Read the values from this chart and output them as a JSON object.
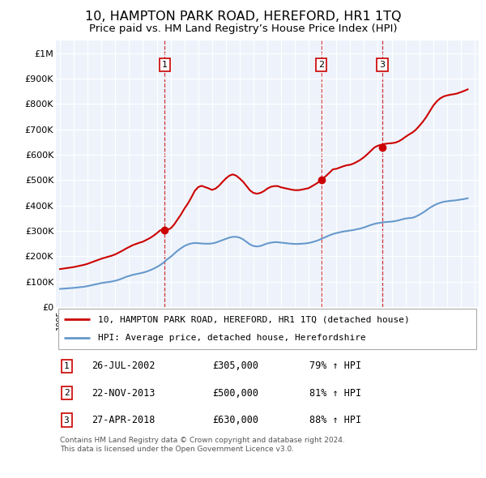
{
  "title": "10, HAMPTON PARK ROAD, HEREFORD, HR1 1TQ",
  "subtitle": "Price paid vs. HM Land Registry’s House Price Index (HPI)",
  "title_fontsize": 11.5,
  "subtitle_fontsize": 9.5,
  "ylabel_ticks": [
    "£0",
    "£100K",
    "£200K",
    "£300K",
    "£400K",
    "£500K",
    "£600K",
    "£700K",
    "£800K",
    "£900K",
    "£1M"
  ],
  "ytick_values": [
    0,
    100000,
    200000,
    300000,
    400000,
    500000,
    600000,
    700000,
    800000,
    900000,
    1000000
  ],
  "ylim": [
    0,
    1050000
  ],
  "xlim_start": 1994.7,
  "xlim_end": 2025.3,
  "background_color": "#ffffff",
  "chart_bg_color": "#eef3fb",
  "grid_color": "#ffffff",
  "sale_color": "#cc0000",
  "hpi_color": "#6699cc",
  "sale_markers": [
    {
      "year": 2002.57,
      "price": 305000,
      "label": "1"
    },
    {
      "year": 2013.9,
      "price": 500000,
      "label": "2"
    },
    {
      "year": 2018.32,
      "price": 630000,
      "label": "3"
    }
  ],
  "legend_entries": [
    "10, HAMPTON PARK ROAD, HEREFORD, HR1 1TQ (detached house)",
    "HPI: Average price, detached house, Herefordshire"
  ],
  "table_rows": [
    {
      "num": "1",
      "date": "26-JUL-2002",
      "price": "£305,000",
      "hpi": "79% ↑ HPI"
    },
    {
      "num": "2",
      "date": "22-NOV-2013",
      "price": "£500,000",
      "hpi": "81% ↑ HPI"
    },
    {
      "num": "3",
      "date": "27-APR-2018",
      "price": "£630,000",
      "hpi": "88% ↑ HPI"
    }
  ],
  "footer": "Contains HM Land Registry data © Crown copyright and database right 2024.\nThis data is licensed under the Open Government Licence v3.0.",
  "hpi_data": {
    "years": [
      1995.0,
      1995.25,
      1995.5,
      1995.75,
      1996.0,
      1996.25,
      1996.5,
      1996.75,
      1997.0,
      1997.25,
      1997.5,
      1997.75,
      1998.0,
      1998.25,
      1998.5,
      1998.75,
      1999.0,
      1999.25,
      1999.5,
      1999.75,
      2000.0,
      2000.25,
      2000.5,
      2000.75,
      2001.0,
      2001.25,
      2001.5,
      2001.75,
      2002.0,
      2002.25,
      2002.5,
      2002.75,
      2003.0,
      2003.25,
      2003.5,
      2003.75,
      2004.0,
      2004.25,
      2004.5,
      2004.75,
      2005.0,
      2005.25,
      2005.5,
      2005.75,
      2006.0,
      2006.25,
      2006.5,
      2006.75,
      2007.0,
      2007.25,
      2007.5,
      2007.75,
      2008.0,
      2008.25,
      2008.5,
      2008.75,
      2009.0,
      2009.25,
      2009.5,
      2009.75,
      2010.0,
      2010.25,
      2010.5,
      2010.75,
      2011.0,
      2011.25,
      2011.5,
      2011.75,
      2012.0,
      2012.25,
      2012.5,
      2012.75,
      2013.0,
      2013.25,
      2013.5,
      2013.75,
      2014.0,
      2014.25,
      2014.5,
      2014.75,
      2015.0,
      2015.25,
      2015.5,
      2015.75,
      2016.0,
      2016.25,
      2016.5,
      2016.75,
      2017.0,
      2017.25,
      2017.5,
      2017.75,
      2018.0,
      2018.25,
      2018.5,
      2018.75,
      2019.0,
      2019.25,
      2019.5,
      2019.75,
      2020.0,
      2020.25,
      2020.5,
      2020.75,
      2021.0,
      2021.25,
      2021.5,
      2021.75,
      2022.0,
      2022.25,
      2022.5,
      2022.75,
      2023.0,
      2023.25,
      2023.5,
      2023.75,
      2024.0,
      2024.25,
      2024.5
    ],
    "values": [
      72000,
      73000,
      74000,
      75000,
      76000,
      77500,
      79000,
      80500,
      83000,
      86000,
      89000,
      92000,
      95000,
      97000,
      99000,
      101000,
      104000,
      108000,
      113000,
      119000,
      123000,
      127000,
      130000,
      133000,
      136000,
      140000,
      145000,
      151000,
      158000,
      166000,
      176000,
      188000,
      198000,
      210000,
      222000,
      232000,
      241000,
      247000,
      251000,
      253000,
      252000,
      251000,
      250000,
      250000,
      251000,
      254000,
      259000,
      264000,
      269000,
      274000,
      277000,
      277000,
      274000,
      267000,
      257000,
      247000,
      241000,
      239000,
      241000,
      246000,
      251000,
      254000,
      256000,
      256000,
      254000,
      253000,
      251000,
      250000,
      249000,
      249000,
      250000,
      251000,
      253000,
      256000,
      260000,
      265000,
      271000,
      277000,
      283000,
      288000,
      292000,
      295000,
      298000,
      300000,
      302000,
      304000,
      307000,
      310000,
      314000,
      319000,
      324000,
      328000,
      331000,
      333000,
      335000,
      336000,
      337000,
      339000,
      342000,
      346000,
      349000,
      351000,
      352000,
      357000,
      364000,
      372000,
      381000,
      391000,
      399000,
      406000,
      411000,
      415000,
      417000,
      419000,
      420000,
      422000,
      424000,
      426000,
      429000
    ]
  },
  "sale_line_data": {
    "years": [
      1995.0,
      1995.25,
      1995.5,
      1995.75,
      1996.0,
      1996.25,
      1996.5,
      1996.75,
      1997.0,
      1997.25,
      1997.5,
      1997.75,
      1998.0,
      1998.25,
      1998.5,
      1998.75,
      1999.0,
      1999.25,
      1999.5,
      1999.75,
      2000.0,
      2000.25,
      2000.5,
      2000.75,
      2001.0,
      2001.25,
      2001.5,
      2001.75,
      2002.0,
      2002.25,
      2002.5,
      2002.75,
      2003.0,
      2003.25,
      2003.5,
      2003.75,
      2004.0,
      2004.25,
      2004.5,
      2004.75,
      2005.0,
      2005.25,
      2005.5,
      2005.75,
      2006.0,
      2006.25,
      2006.5,
      2006.75,
      2007.0,
      2007.25,
      2007.5,
      2007.75,
      2008.0,
      2008.25,
      2008.5,
      2008.75,
      2009.0,
      2009.25,
      2009.5,
      2009.75,
      2010.0,
      2010.25,
      2010.5,
      2010.75,
      2011.0,
      2011.25,
      2011.5,
      2011.75,
      2012.0,
      2012.25,
      2012.5,
      2012.75,
      2013.0,
      2013.25,
      2013.5,
      2013.75,
      2014.0,
      2014.25,
      2014.5,
      2014.75,
      2015.0,
      2015.25,
      2015.5,
      2015.75,
      2016.0,
      2016.25,
      2016.5,
      2016.75,
      2017.0,
      2017.25,
      2017.5,
      2017.75,
      2018.0,
      2018.25,
      2018.5,
      2018.75,
      2019.0,
      2019.25,
      2019.5,
      2019.75,
      2020.0,
      2020.25,
      2020.5,
      2020.75,
      2021.0,
      2021.25,
      2021.5,
      2021.75,
      2022.0,
      2022.25,
      2022.5,
      2022.75,
      2023.0,
      2023.25,
      2023.5,
      2023.75,
      2024.0,
      2024.25,
      2024.5
    ],
    "values": [
      150000,
      152000,
      154000,
      156000,
      158000,
      161000,
      164000,
      167000,
      171000,
      176000,
      181000,
      186000,
      191000,
      195000,
      199000,
      203000,
      208000,
      215000,
      222000,
      230000,
      237000,
      244000,
      249000,
      254000,
      258000,
      265000,
      272000,
      281000,
      291000,
      303000,
      305000,
      305000,
      310000,
      325000,
      345000,
      365000,
      388000,
      408000,
      432000,
      458000,
      473000,
      478000,
      473000,
      468000,
      462000,
      467000,
      478000,
      493000,
      507000,
      518000,
      523000,
      518000,
      507000,
      494000,
      477000,
      460000,
      450000,
      447000,
      450000,
      457000,
      467000,
      474000,
      477000,
      477000,
      472000,
      469000,
      466000,
      463000,
      461000,
      461000,
      463000,
      466000,
      469000,
      477000,
      485000,
      494000,
      505000,
      517000,
      530000,
      543000,
      545000,
      550000,
      555000,
      559000,
      561000,
      566000,
      573000,
      581000,
      591000,
      603000,
      616000,
      629000,
      636000,
      640000,
      643000,
      645000,
      646000,
      648000,
      653000,
      661000,
      671000,
      680000,
      688000,
      699000,
      714000,
      730000,
      749000,
      771000,
      793000,
      810000,
      822000,
      830000,
      834000,
      837000,
      839000,
      842000,
      847000,
      852000,
      858000
    ]
  }
}
